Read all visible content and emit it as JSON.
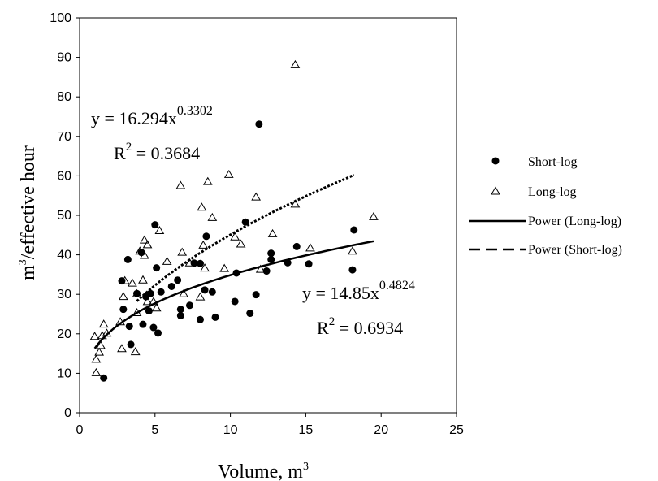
{
  "chart_data": {
    "type": "scatter",
    "xlabel": "Volume, m",
    "xlabel_sup": "3",
    "ylabel_prefix": "m",
    "ylabel_sup": "3",
    "ylabel_suffix": "/effective hour",
    "xlim": [
      0,
      25
    ],
    "ylim": [
      0,
      100
    ],
    "xticks": [
      0,
      5,
      10,
      15,
      20,
      25
    ],
    "yticks": [
      0,
      10,
      20,
      30,
      40,
      50,
      60,
      70,
      80,
      90,
      100
    ],
    "grid": false,
    "legend_position": "right",
    "legend": [
      {
        "label": "Short-log",
        "marker": "filled-circle"
      },
      {
        "label": "Long-log",
        "marker": "open-triangle"
      },
      {
        "label": "Power (Long-log)",
        "line": "solid"
      },
      {
        "label": "Power (Short-log)",
        "line": "dashed"
      }
    ],
    "annotations": {
      "long_eq": {
        "prefix": "y = 16.294x",
        "exp": "0.3302"
      },
      "long_r2": {
        "prefix": "R",
        "sup": "2",
        "suffix": " = 0.3684"
      },
      "short_eq": {
        "prefix": "y = 14.85x",
        "exp": "0.4824"
      },
      "short_r2": {
        "prefix": "R",
        "sup": "2",
        "suffix": " = 0.6934"
      }
    },
    "series": [
      {
        "name": "Short-log",
        "marker": "filled-circle",
        "points": [
          [
            1.6,
            8.8
          ],
          [
            2.8,
            33.4
          ],
          [
            2.9,
            26.2
          ],
          [
            3.2,
            38.8
          ],
          [
            3.3,
            21.9
          ],
          [
            3.4,
            17.3
          ],
          [
            3.8,
            30.2
          ],
          [
            4.1,
            40.6
          ],
          [
            4.2,
            22.4
          ],
          [
            4.4,
            29.4
          ],
          [
            4.6,
            25.8
          ],
          [
            4.7,
            30.2
          ],
          [
            4.9,
            21.6
          ],
          [
            5.0,
            47.6
          ],
          [
            5.1,
            36.7
          ],
          [
            5.2,
            20.2
          ],
          [
            5.4,
            30.6
          ],
          [
            6.1,
            32.0
          ],
          [
            6.5,
            33.6
          ],
          [
            6.7,
            24.6
          ],
          [
            6.7,
            26.2
          ],
          [
            7.3,
            27.2
          ],
          [
            7.6,
            37.9
          ],
          [
            8.0,
            23.6
          ],
          [
            8.0,
            37.8
          ],
          [
            8.3,
            31.1
          ],
          [
            8.4,
            44.7
          ],
          [
            8.8,
            30.6
          ],
          [
            9.0,
            24.2
          ],
          [
            10.3,
            28.2
          ],
          [
            10.4,
            35.4
          ],
          [
            11.0,
            48.3
          ],
          [
            11.3,
            25.2
          ],
          [
            11.7,
            29.9
          ],
          [
            11.9,
            73.1
          ],
          [
            12.4,
            35.9
          ],
          [
            12.7,
            40.4
          ],
          [
            12.7,
            38.8
          ],
          [
            13.8,
            38.0
          ],
          [
            14.4,
            42.1
          ],
          [
            15.2,
            37.7
          ],
          [
            18.1,
            36.2
          ],
          [
            18.2,
            46.3
          ]
        ]
      },
      {
        "name": "Long-log",
        "marker": "open-triangle",
        "points": [
          [
            1.0,
            19.2
          ],
          [
            1.1,
            10.0
          ],
          [
            1.1,
            13.4
          ],
          [
            1.3,
            15.2
          ],
          [
            1.4,
            16.9
          ],
          [
            1.5,
            19.4
          ],
          [
            1.6,
            22.3
          ],
          [
            1.8,
            20.0
          ],
          [
            2.7,
            22.9
          ],
          [
            2.8,
            16.1
          ],
          [
            2.9,
            29.3
          ],
          [
            3.0,
            33.3
          ],
          [
            3.5,
            32.7
          ],
          [
            3.7,
            15.3
          ],
          [
            3.8,
            25.2
          ],
          [
            3.8,
            30.0
          ],
          [
            4.0,
            40.8
          ],
          [
            4.2,
            33.5
          ],
          [
            4.3,
            43.6
          ],
          [
            4.3,
            39.7
          ],
          [
            4.5,
            28.0
          ],
          [
            4.5,
            42.4
          ],
          [
            4.9,
            28.0
          ],
          [
            5.1,
            26.4
          ],
          [
            5.3,
            46.0
          ],
          [
            5.8,
            38.2
          ],
          [
            6.7,
            57.4
          ],
          [
            6.8,
            40.5
          ],
          [
            6.9,
            30.0
          ],
          [
            7.3,
            37.8
          ],
          [
            8.0,
            29.2
          ],
          [
            8.1,
            51.9
          ],
          [
            8.2,
            42.3
          ],
          [
            8.3,
            36.5
          ],
          [
            8.5,
            58.4
          ],
          [
            8.8,
            49.3
          ],
          [
            9.6,
            36.4
          ],
          [
            9.9,
            60.2
          ],
          [
            10.3,
            44.4
          ],
          [
            10.7,
            42.6
          ],
          [
            11.7,
            54.5
          ],
          [
            12.0,
            36.2
          ],
          [
            12.8,
            45.2
          ],
          [
            14.3,
            52.7
          ],
          [
            14.3,
            88.0
          ],
          [
            15.3,
            41.6
          ],
          [
            18.1,
            40.8
          ],
          [
            19.5,
            49.5
          ]
        ]
      }
    ],
    "trendlines": [
      {
        "name": "Power (Long-log)",
        "a": 16.294,
        "b": 0.3302,
        "x_range": [
          1.0,
          19.5
        ],
        "style": "solid"
      },
      {
        "name": "Power (Short-log)",
        "a": 14.85,
        "b": 0.4824,
        "x_range": [
          3.8,
          18.2
        ],
        "style": "dashed"
      }
    ]
  }
}
